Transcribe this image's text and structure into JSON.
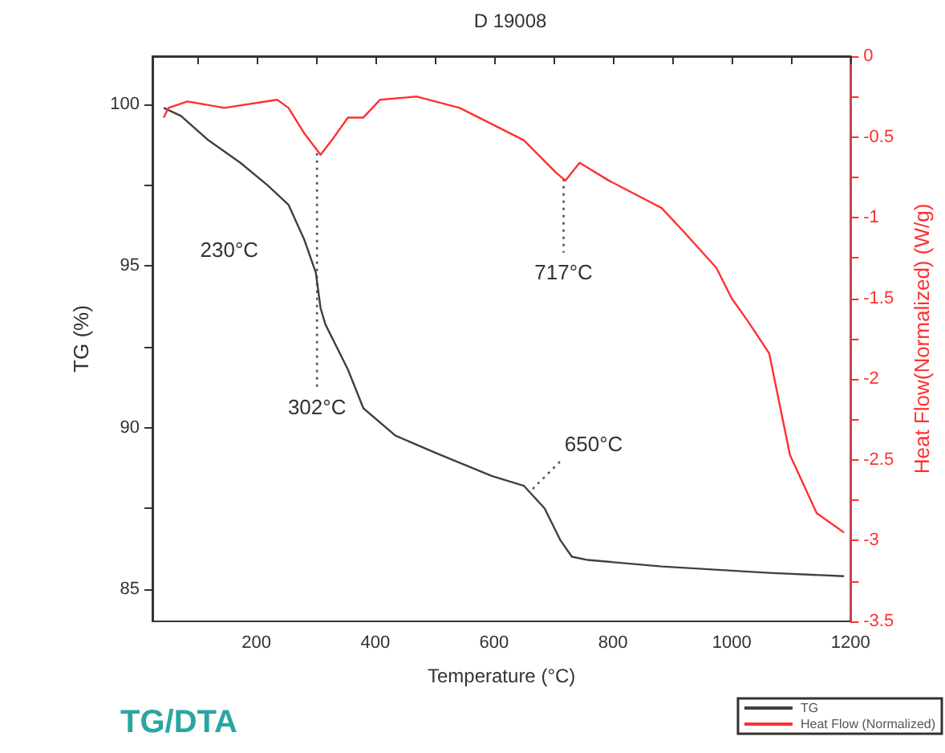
{
  "chart_data": {
    "type": "line",
    "title": "D 19008",
    "xlabel": "Temperature (°C)",
    "ylabel": "TG (%)",
    "y2label": "Heat Flow(Normalized) (W/g)",
    "xlim": [
      25,
      1200
    ],
    "xticks": [
      {
        "value": 100,
        "label": null
      },
      200,
      {
        "value": 300,
        "label": null
      },
      400,
      {
        "value": 500,
        "label": null
      },
      600,
      {
        "value": 700,
        "label": null
      },
      800,
      {
        "value": 900,
        "label": null
      },
      1000,
      {
        "value": 1100,
        "label": null
      },
      1200
    ],
    "ylim": [
      84,
      101.5
    ],
    "yticks": [
      85,
      {
        "value": 87.5,
        "label": null
      },
      90,
      {
        "value": 92.5,
        "label": null
      },
      95,
      {
        "value": 97.5,
        "label": null
      },
      100
    ],
    "y2lim": [
      -3.5,
      0
    ],
    "y2ticks": [
      -3.5,
      {
        "value": -3.25,
        "label": null
      },
      -3,
      {
        "value": -2.75,
        "label": null
      },
      -2.5,
      {
        "value": -2.25,
        "label": null
      },
      -2,
      {
        "value": -1.75,
        "label": null
      },
      -1.5,
      {
        "value": -1.25,
        "label": null
      },
      -1,
      {
        "value": -0.75,
        "label": null
      },
      -0.5,
      {
        "value": -0.25,
        "label": null
      },
      0
    ],
    "grid": false,
    "legend": "bottom right",
    "marker": "none",
    "line_style": "solid",
    "series": [
      {
        "name": "TG",
        "color": "#404040",
        "x": [
          44,
          73,
          119,
          173,
          219,
          254,
          281,
          300,
          308,
          316,
          354,
          380,
          434,
          504,
          596,
          650,
          685,
          712,
          731,
          758,
          882,
          1063,
          1189
        ],
        "values": [
          99.9,
          99.65,
          98.9,
          98.2,
          97.5,
          96.9,
          95.8,
          94.8,
          93.7,
          93.2,
          91.8,
          90.6,
          89.75,
          89.2,
          88.5,
          88.2,
          87.5,
          86.5,
          86.0,
          85.9,
          85.7,
          85.5,
          85.4
        ]
      },
      {
        "name": "Heat Flow (Normalized)",
        "color": "#ff3030",
        "axis": "y2",
        "x": [
          44,
          52,
          84,
          146,
          235,
          254,
          281,
          308,
          327,
          354,
          380,
          408,
          470,
          542,
          650,
          704,
          720,
          744,
          793,
          882,
          920,
          974,
          1000,
          1027,
          1063,
          1098,
          1143,
          1189
        ],
        "values": [
          -0.38,
          -0.32,
          -0.28,
          -0.32,
          -0.27,
          -0.32,
          -0.48,
          -0.61,
          -0.52,
          -0.38,
          -0.38,
          -0.27,
          -0.25,
          -0.32,
          -0.52,
          -0.72,
          -0.77,
          -0.66,
          -0.77,
          -0.94,
          -1.09,
          -1.31,
          -1.5,
          -1.64,
          -1.84,
          -2.47,
          -2.83,
          -2.95
        ]
      }
    ],
    "annotations": [
      {
        "text": "230°C",
        "x": 230,
        "y": 97.4
      },
      {
        "text": "302°C",
        "x": 302,
        "y": 98.5
      },
      {
        "text": "717°C",
        "x": 717,
        "y": 97.7
      },
      {
        "text": "650°C",
        "x": 665,
        "y": 88.1
      },
      "TG/DTA"
    ]
  }
}
